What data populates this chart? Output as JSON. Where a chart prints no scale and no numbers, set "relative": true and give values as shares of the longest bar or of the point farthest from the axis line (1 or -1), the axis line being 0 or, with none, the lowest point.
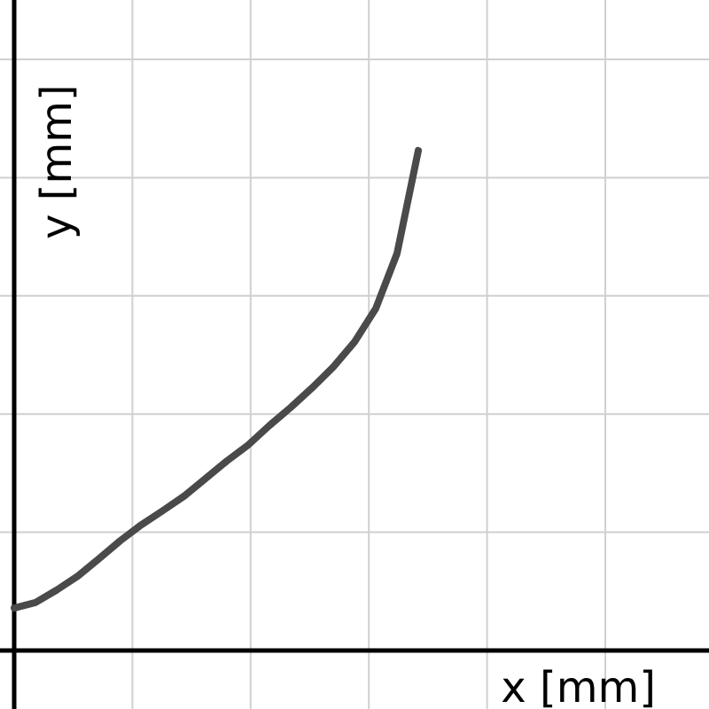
{
  "chart_data": {
    "type": "line",
    "xlabel": "x [mm]",
    "ylabel": "y [mm]",
    "relative": true,
    "grid": true,
    "marker": "none",
    "line_style": "solid",
    "categories": [
      null,
      null,
      null,
      null,
      null,
      null,
      null,
      null,
      null,
      null,
      null,
      null,
      null,
      null,
      null,
      null,
      null,
      null,
      null,
      null
    ],
    "series": [
      {
        "color": "#4a4a4a",
        "values": [
          0.085,
          0.096,
          0.121,
          0.149,
          0.184,
          0.22,
          0.252,
          0.28,
          0.309,
          0.344,
          0.379,
          0.411,
          0.45,
          0.486,
          0.525,
          0.567,
          0.617,
          0.684,
          0.794,
          1
        ]
      }
    ]
  }
}
